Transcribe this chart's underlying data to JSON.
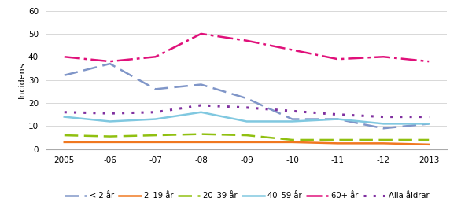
{
  "years": [
    2005,
    2006,
    2007,
    2008,
    2009,
    2010,
    2011,
    2012,
    2013
  ],
  "x_labels": [
    "2005",
    "-06",
    "-07",
    "-08",
    "-09",
    "-10",
    "-11",
    "-12",
    "2013"
  ],
  "series": {
    "lt2": [
      32,
      37,
      26,
      28,
      22,
      13,
      13,
      9,
      11
    ],
    "age2_19": [
      3,
      3,
      3,
      3,
      3,
      3,
      2.5,
      2.5,
      2
    ],
    "age20_39": [
      6,
      5.5,
      6,
      6.5,
      6,
      4,
      4,
      4,
      4
    ],
    "age40_59": [
      14,
      12,
      13,
      16,
      12,
      12,
      13,
      11,
      11
    ],
    "age60plus": [
      40,
      38,
      40,
      50,
      47,
      43,
      39,
      40,
      38
    ],
    "alla": [
      16,
      15.5,
      16,
      19,
      18,
      16.5,
      15,
      14,
      14
    ]
  },
  "colors": {
    "lt2": "#8096C8",
    "age2_19": "#F07820",
    "age20_39": "#90C010",
    "age40_59": "#80C8E0",
    "age60plus": "#E0107A",
    "alla": "#8030A0"
  },
  "ylabel": "Incidens",
  "ylim": [
    0,
    60
  ],
  "yticks": [
    0,
    10,
    20,
    30,
    40,
    50,
    60
  ],
  "legend_labels": [
    "< 2 år",
    "2–19 år",
    "20–39 år",
    "40–59 år",
    "60+ år",
    "Alla åldrar"
  ],
  "background_color": "#ffffff",
  "grid_color": "#d8d8d8"
}
